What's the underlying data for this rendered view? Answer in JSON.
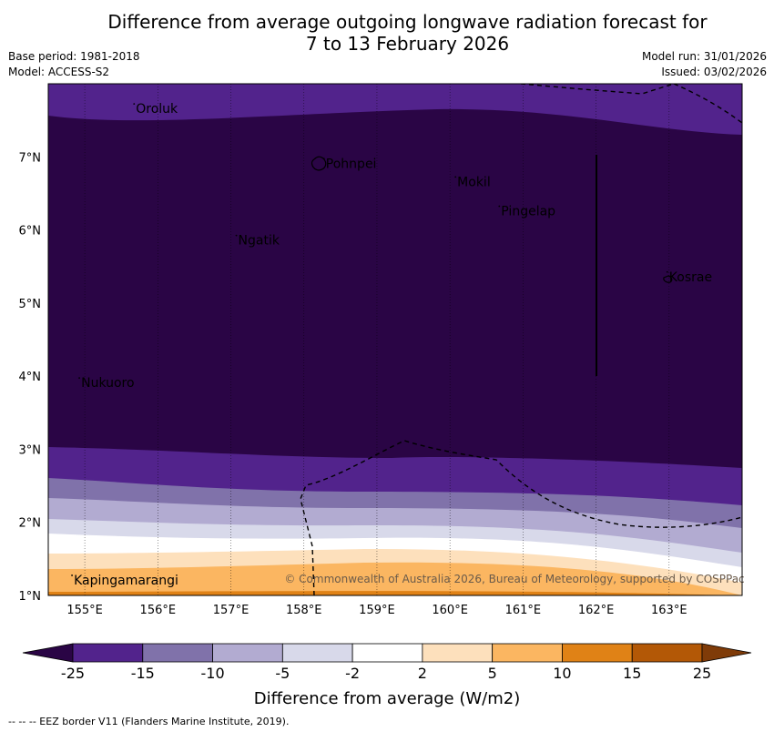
{
  "header": {
    "title_line1": "Difference from average outgoing longwave radiation forecast for",
    "title_line2": "7 to 13 February 2026",
    "base_period": "Base period: 1981-2018",
    "model": "Model: ACCESS-S2",
    "model_run": "Model run: 31/01/2026",
    "issued": "Issued: 03/02/2026"
  },
  "map": {
    "lat_range": [
      1,
      8
    ],
    "lon_range": [
      154.5,
      164
    ],
    "lat_ticks": [
      "1°N",
      "2°N",
      "3°N",
      "4°N",
      "5°N",
      "6°N",
      "7°N"
    ],
    "lon_ticks": [
      "155°E",
      "156°E",
      "157°E",
      "158°E",
      "159°E",
      "160°E",
      "161°E",
      "162°E",
      "163°E"
    ],
    "places": [
      {
        "name": "Oroluk",
        "lon": 155.7,
        "lat": 7.6
      },
      {
        "name": "Pohnpei",
        "lon": 158.3,
        "lat": 6.85
      },
      {
        "name": "Mokil",
        "lon": 160.1,
        "lat": 6.6
      },
      {
        "name": "Pingelap",
        "lon": 160.7,
        "lat": 6.2
      },
      {
        "name": "Ngatik",
        "lon": 157.1,
        "lat": 5.8
      },
      {
        "name": "Kosrae",
        "lon": 163.0,
        "lat": 5.3
      },
      {
        "name": "Nukuoro",
        "lon": 154.95,
        "lat": 3.85
      },
      {
        "name": "Kapingamarangi",
        "lon": 154.85,
        "lat": 1.15
      }
    ],
    "copyright": "© Commonwealth of Australia 2026, Bureau of Meteorology, supported by COSPPac"
  },
  "colorbar": {
    "ticks": [
      "-25",
      "-15",
      "-10",
      "-5",
      "-2",
      "2",
      "5",
      "10",
      "15",
      "25"
    ],
    "colors": [
      "#2a0545",
      "#52238c",
      "#8072aa",
      "#b2abd1",
      "#d8d9ea",
      "#ffffff",
      "#fde0bc",
      "#fbb661",
      "#e08216",
      "#b35806",
      "#7f3b08"
    ],
    "title": "Difference from average (W/m2)"
  },
  "footnote": "--  --  -- EEZ border V11 (Flanders Marine Institute, 2019)."
}
